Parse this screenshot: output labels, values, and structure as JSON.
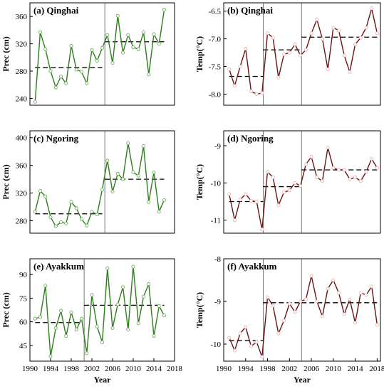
{
  "chart_data": [
    {
      "id": "a",
      "type": "line",
      "title": "(a) Qinghai",
      "ylabel": "Prec (cm)",
      "xlabel": "",
      "ylim": [
        230,
        380
      ],
      "yticks": [
        240,
        280,
        320,
        360
      ],
      "xlim": [
        1990,
        2018
      ],
      "xticks": [],
      "x_start": 1991,
      "values": [
        235,
        337,
        312,
        280,
        256,
        272,
        262,
        317,
        282,
        279,
        262,
        311,
        295,
        314,
        333,
        292,
        361,
        307,
        333,
        315,
        312,
        337,
        275,
        334,
        320,
        370
      ],
      "change_year": 2004.5,
      "segments": [
        {
          "from": 1991,
          "to": 2004,
          "mean": 285
        },
        {
          "from": 2004.5,
          "to": 2016,
          "mean": 323
        }
      ],
      "line_color": "#2e7d1e",
      "marker": "#6fb05a"
    },
    {
      "id": "b",
      "type": "line",
      "title": "(b) Qinghai",
      "ylabel": "Temp(°C)",
      "xlabel": "",
      "ylim": [
        -8.2,
        -6.35
      ],
      "yticks": [
        -8.0,
        -7.5,
        -7.0,
        -6.5
      ],
      "ytick_fmt": 1,
      "xlim": [
        1990,
        2018.6
      ],
      "xticks": [],
      "x_start": 1991,
      "values": [
        -7.55,
        -7.85,
        -7.5,
        -7.18,
        -7.95,
        -8.0,
        -7.98,
        -6.9,
        -6.98,
        -7.7,
        -7.28,
        -7.25,
        -7.1,
        -7.3,
        -7.2,
        -6.9,
        -6.65,
        -7.0,
        -7.55,
        -6.8,
        -6.85,
        -7.3,
        -7.6,
        -7.1,
        -6.98,
        -6.8,
        -6.45,
        -6.9
      ],
      "change_years": [
        1997.2,
        2004.2
      ],
      "segments": [
        {
          "from": 1991,
          "to": 1997.2,
          "mean": -7.68
        },
        {
          "from": 1997.2,
          "to": 2004.2,
          "mean": -7.2
        },
        {
          "from": 2004.2,
          "to": 2018,
          "mean": -6.97
        }
      ],
      "line_color": "#6b1414",
      "marker": "#e8b4b4"
    },
    {
      "id": "c",
      "type": "line",
      "title": "(c) Ngoring",
      "ylabel": "Prec (cm)",
      "xlabel": "",
      "ylim": [
        262,
        410
      ],
      "yticks": [
        280,
        320,
        360,
        400
      ],
      "xlim": [
        1990,
        2018
      ],
      "xticks": [],
      "x_start": 1991,
      "values": [
        293,
        323,
        315,
        285,
        272,
        278,
        276,
        307,
        298,
        282,
        273,
        293,
        289,
        325,
        367,
        322,
        348,
        340,
        392,
        350,
        345,
        388,
        307,
        350,
        293,
        310
      ],
      "change_year": 2004.5,
      "segments": [
        {
          "from": 1991,
          "to": 2004,
          "mean": 290
        },
        {
          "from": 2004.5,
          "to": 2016,
          "mean": 340
        }
      ],
      "line_color": "#2e7d1e",
      "marker": "#6fb05a"
    },
    {
      "id": "d",
      "type": "line",
      "title": "(d) Ngoring",
      "ylabel": "Temp(°C)",
      "xlabel": "",
      "ylim": [
        -11.35,
        -8.6
      ],
      "yticks": [
        -11,
        -10,
        -9
      ],
      "ytick_fmt": 0,
      "xlim": [
        1990,
        2018.6
      ],
      "xticks": [],
      "x_start": 1991,
      "values": [
        -10.3,
        -11.0,
        -10.45,
        -10.3,
        -10.48,
        -10.5,
        -11.25,
        -9.7,
        -9.85,
        -10.6,
        -10.25,
        -10.2,
        -10.0,
        -10.08,
        -9.5,
        -9.3,
        -9.85,
        -9.95,
        -9.05,
        -9.6,
        -9.65,
        -9.65,
        -9.9,
        -9.85,
        -9.95,
        -9.7,
        -9.35,
        -9.6
      ],
      "change_years": [
        1997.2,
        2004.2
      ],
      "segments": [
        {
          "from": 1991,
          "to": 1997.2,
          "mean": -10.5
        },
        {
          "from": 1997.2,
          "to": 2004.2,
          "mean": -10.1
        },
        {
          "from": 2004.2,
          "to": 2018,
          "mean": -9.65
        }
      ],
      "line_color": "#6b1414",
      "marker": "#e8b4b4"
    },
    {
      "id": "e",
      "type": "line",
      "title": "(e) Ayakkum",
      "ylabel": "Prec (cm)",
      "xlabel": "Year",
      "ylim": [
        35,
        100
      ],
      "yticks": [
        45,
        60,
        75,
        90
      ],
      "xlim": [
        1990,
        2018
      ],
      "xticks": [
        1990,
        1994,
        1998,
        2002,
        2006,
        2010,
        2014,
        2018
      ],
      "x_start": 1991,
      "values": [
        62,
        63,
        83,
        38,
        56,
        67,
        51,
        66,
        55,
        62,
        40,
        77,
        57,
        47,
        94,
        56,
        71,
        82,
        55,
        95,
        59,
        76,
        84,
        51,
        70,
        64
      ],
      "change_year": 2000.5,
      "segments": [
        {
          "from": 1991,
          "to": 2000,
          "mean": 59.5
        },
        {
          "from": 2000.5,
          "to": 2016,
          "mean": 70.5
        }
      ],
      "line_color": "#2e7d1e",
      "marker": "#6fb05a"
    },
    {
      "id": "f",
      "type": "line",
      "title": "(f) Ayakkum",
      "ylabel": "Temp(°C)",
      "xlabel": "Year",
      "ylim": [
        -10.4,
        -8.0
      ],
      "yticks": [
        -10,
        -9,
        -8
      ],
      "ytick_fmt": 0,
      "xlim": [
        1990,
        2018.6
      ],
      "xticks": [
        1990,
        1994,
        1998,
        2002,
        2006,
        2010,
        2014,
        2018
      ],
      "x_start": 1991,
      "values": [
        -9.85,
        -10.15,
        -9.75,
        -9.6,
        -10.05,
        -9.95,
        -10.3,
        -8.9,
        -9.1,
        -9.75,
        -9.45,
        -9.05,
        -9.25,
        -9.0,
        -8.95,
        -8.4,
        -9.0,
        -9.35,
        -8.7,
        -8.5,
        -8.8,
        -9.3,
        -8.95,
        -9.5,
        -8.8,
        -8.85,
        -8.65,
        -9.55
      ],
      "change_years": [
        1997.2,
        2004.2
      ],
      "segments": [
        {
          "from": 1991,
          "to": 1997.2,
          "mean": -9.92
        },
        {
          "from": 1997.2,
          "to": 2004.2,
          "mean": -9.03
        },
        {
          "from": 2004.2,
          "to": 2018,
          "mean": -9.03
        }
      ],
      "line_color": "#6b1414",
      "marker": "#e8b4b4"
    }
  ]
}
